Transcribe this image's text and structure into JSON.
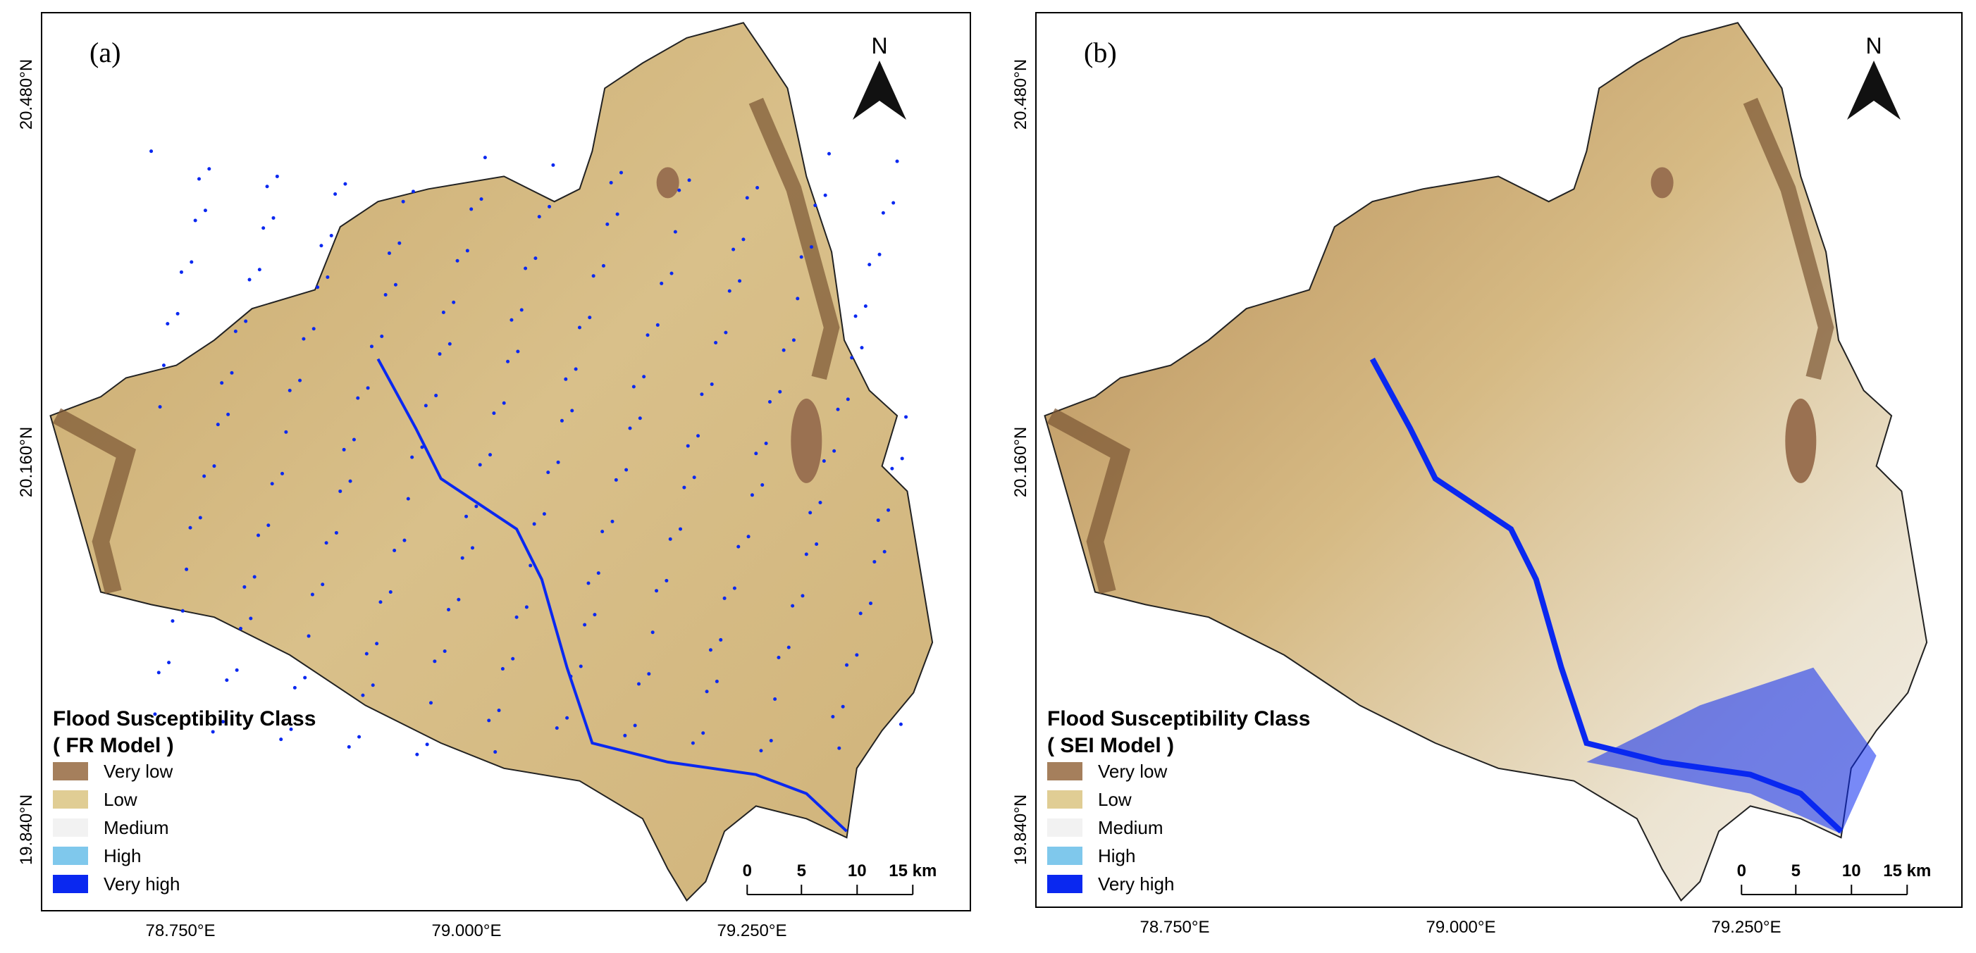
{
  "panels": [
    {
      "label": "(a)",
      "north": "N",
      "lat_labels": [
        "20.480°N",
        "20.160°N",
        "19.840°N"
      ],
      "lon_labels": [
        "78.750°E",
        "79.000°E",
        "79.250°E"
      ],
      "legend": {
        "title": "Flood Susceptibility Class",
        "subtitle": "( FR Model )",
        "items": [
          {
            "label": "Very low",
            "color": "#a57f5c"
          },
          {
            "label": "Low",
            "color": "#e0cd94"
          },
          {
            "label": "Medium",
            "color": "#f2f2f2"
          },
          {
            "label": "High",
            "color": "#7fc8ec"
          },
          {
            "label": "Very high",
            "color": "#0a28f0"
          }
        ]
      },
      "scale": [
        "0",
        "5",
        "10",
        "15 km"
      ]
    },
    {
      "label": "(b)",
      "north": "N",
      "lat_labels": [
        "20.480°N",
        "20.160°N",
        "19.840°N"
      ],
      "lon_labels": [
        "78.750°E",
        "79.000°E",
        "79.250°E"
      ],
      "legend": {
        "title": "Flood Susceptibility Class",
        "subtitle": "( SEI Model )",
        "items": [
          {
            "label": "Very low",
            "color": "#a57f5c"
          },
          {
            "label": "Low",
            "color": "#e0cd94"
          },
          {
            "label": "Medium",
            "color": "#f2f2f2"
          },
          {
            "label": "High",
            "color": "#7fc8ec"
          },
          {
            "label": "Very high",
            "color": "#0a28f0"
          }
        ]
      },
      "scale": [
        "0",
        "5",
        "10",
        "15 km"
      ]
    }
  ]
}
